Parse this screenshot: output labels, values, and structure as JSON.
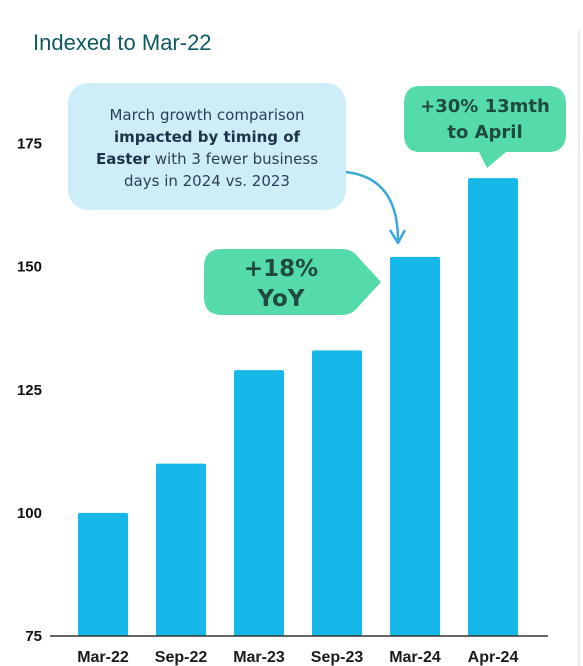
{
  "chart_data": {
    "type": "bar",
    "title": "",
    "subtitle": "Indexed to Mar-22",
    "xlabel": "",
    "ylabel": "",
    "categories": [
      "Mar-22",
      "Sep-22",
      "Mar-23",
      "Sep-23",
      "Mar-24",
      "Apr-24"
    ],
    "values": [
      100,
      110,
      129,
      133,
      152,
      168
    ],
    "ylim": [
      75,
      180
    ],
    "yticks": [
      75,
      100,
      125,
      150,
      175
    ],
    "grid": false,
    "bar_color": "#16b8ea",
    "annotations": {
      "note": {
        "line1": "March growth comparison",
        "line2": "impacted by timing of",
        "line3_bold": "Easter",
        "line3_rest": " with 3 fewer business",
        "line4": "days in 2024 vs. 2023",
        "fill": "#cdeef8",
        "arrow_color": "#3aa9d9"
      },
      "yoy": {
        "line1": "+18%",
        "line2": "YoY",
        "fill": "#55dba9"
      },
      "month13": {
        "line1": "+30% 13mth",
        "line2": "to April",
        "fill": "#55dba9"
      }
    }
  }
}
